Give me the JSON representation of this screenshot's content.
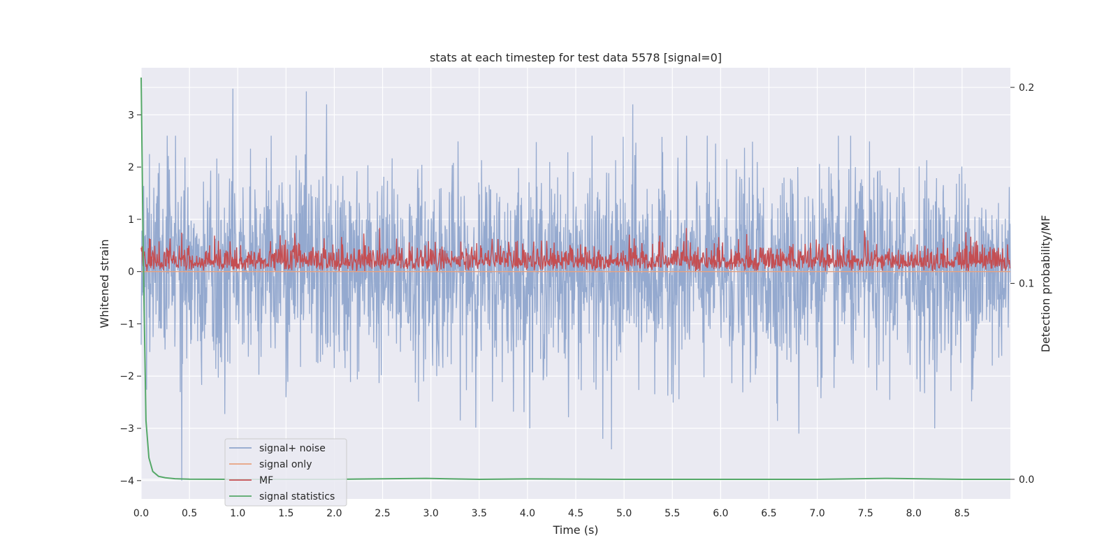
{
  "chart_data": {
    "type": "line",
    "title": "stats at each timestep for test data 5578 [signal=0]",
    "xlabel": "Time (s)",
    "ylabel": "Whitened strain",
    "y2label": "Detection probability/MF",
    "xlim": [
      0.0,
      9.0
    ],
    "ylim": [
      -4.35,
      3.9
    ],
    "y2lim": [
      -0.01,
      0.21
    ],
    "x_ticks": [
      "0.0",
      "0.5",
      "1.0",
      "1.5",
      "2.0",
      "2.5",
      "3.0",
      "3.5",
      "4.0",
      "4.5",
      "5.0",
      "5.5",
      "6.0",
      "6.5",
      "7.0",
      "7.5",
      "8.0",
      "8.5"
    ],
    "y_ticks": [
      "3",
      "2",
      "1",
      "0",
      "−1",
      "−2",
      "−3",
      "−4"
    ],
    "y2_ticks": [
      "0.2",
      "0.1",
      "0.0"
    ],
    "grid": true,
    "legend_position": "lower-left",
    "colors": {
      "signal_noise": "#8fa5cc",
      "signal_only": "#e8a27f",
      "mf": "#c44e52",
      "statistics": "#55a868",
      "background": "#eaeaf2",
      "grid": "#ffffff"
    },
    "series": [
      {
        "name": "signal+ noise",
        "axis": "left",
        "description_range": [
          -4.0,
          3.5
        ],
        "peaks": [
          [
            0.95,
            3.5
          ],
          [
            1.71,
            3.45
          ],
          [
            1.92,
            3.2
          ],
          [
            5.09,
            3.2
          ],
          [
            0.42,
            -4.0
          ],
          [
            4.87,
            -3.4
          ],
          [
            4.78,
            -3.2
          ],
          [
            6.81,
            -3.1
          ]
        ]
      },
      {
        "name": "signal only",
        "axis": "left",
        "constant": 0.0
      },
      {
        "name": "MF",
        "axis": "left",
        "range": [
          0.0,
          1.0
        ]
      },
      {
        "name": "signal statistics",
        "axis": "right",
        "x": [
          0.0,
          0.02,
          0.05,
          0.08,
          0.12,
          0.18,
          0.25,
          0.35,
          0.5,
          1.0,
          2.0,
          2.95,
          3.5,
          4.0,
          5.0,
          6.0,
          7.0,
          7.7,
          8.5,
          9.0
        ],
        "values": [
          0.205,
          0.12,
          0.03,
          0.011,
          0.004,
          0.0015,
          0.0008,
          0.0003,
          0.0001,
          0.0,
          0.0,
          0.0005,
          0.0,
          0.0002,
          0.0,
          0.0,
          0.0,
          0.0005,
          0.0,
          0.0
        ]
      }
    ],
    "legend": [
      "signal+ noise",
      "signal only",
      "MF",
      "signal statistics"
    ]
  }
}
